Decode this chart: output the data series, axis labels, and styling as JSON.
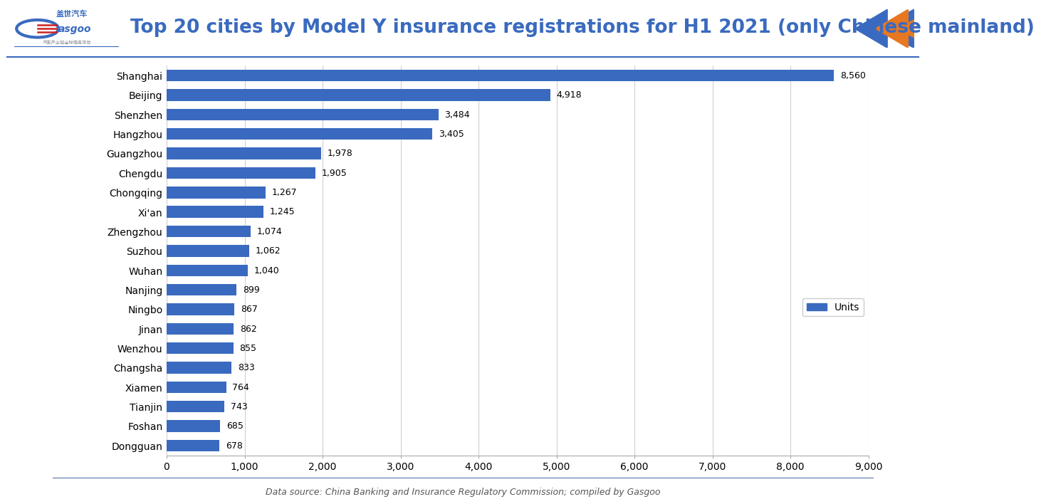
{
  "title": "Top 20 cities by Model Y insurance registrations for H1 2021 (only Chinese mainland)",
  "cities": [
    "Shanghai",
    "Beijing",
    "Shenzhen",
    "Hangzhou",
    "Guangzhou",
    "Chengdu",
    "Chongqing",
    "Xi'an",
    "Zhengzhou",
    "Suzhou",
    "Wuhan",
    "Nanjing",
    "Ningbo",
    "Jinan",
    "Wenzhou",
    "Changsha",
    "Xiamen",
    "Tianjin",
    "Foshan",
    "Dongguan"
  ],
  "values": [
    8560,
    4918,
    3484,
    3405,
    1978,
    1905,
    1267,
    1245,
    1074,
    1062,
    1040,
    899,
    867,
    862,
    855,
    833,
    764,
    743,
    685,
    678
  ],
  "bar_color": "#3a6abf",
  "bg_color": "#ffffff",
  "xlim": [
    0,
    9000
  ],
  "xticks": [
    0,
    1000,
    2000,
    3000,
    4000,
    5000,
    6000,
    7000,
    8000,
    9000
  ],
  "xticklabels": [
    "0",
    "1,000",
    "2,000",
    "3,000",
    "4,000",
    "5,000",
    "6,000",
    "7,000",
    "8,000",
    "9,000"
  ],
  "data_source": "Data source: China Banking and Insurance Regulatory Commission; compiled by Gasgoo",
  "legend_label": "Units",
  "title_color": "#3a6abf",
  "title_fontsize": 19,
  "bar_fontsize": 9,
  "tick_fontsize": 10,
  "footer_fontsize": 9,
  "header_line_color": "#3a6abf",
  "footer_line_color": "#5577aa",
  "grid_color": "#d0d0d0",
  "arrow_orange": "#e87722",
  "arrow_blue": "#3a6abf"
}
